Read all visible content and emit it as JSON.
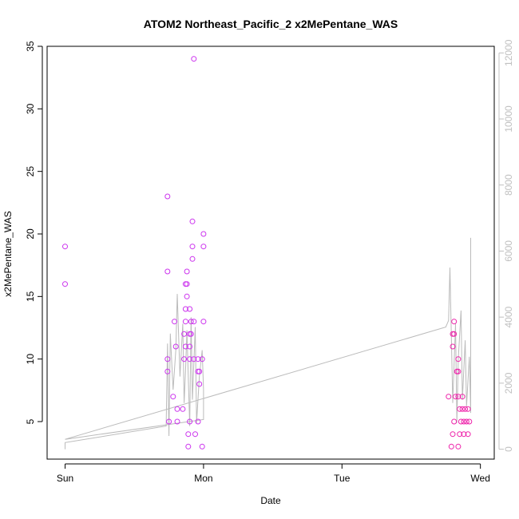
{
  "chart_data": {
    "type": "scatter",
    "title": "ATOM2 Northeast_Pacific_2 x2MePentane_WAS",
    "xlabel": "Date",
    "ylabel": "x2MePentane_WAS",
    "x_ticks": [
      {
        "value": 0,
        "label": "Sun"
      },
      {
        "value": 1,
        "label": "Mon"
      },
      {
        "value": 2,
        "label": "Tue"
      },
      {
        "value": 3,
        "label": "Wed"
      }
    ],
    "xlim": [
      -0.13,
      3.1
    ],
    "ylim": [
      2,
      35
    ],
    "y_ticks": [
      5,
      10,
      15,
      20,
      25,
      30,
      35
    ],
    "y2lim": [
      -300,
      12200
    ],
    "y2_ticks": [
      0,
      2000,
      4000,
      6000,
      8000,
      10000,
      12000
    ],
    "colors": {
      "points_early": "#cc33ee",
      "points_late": "#ee22aa",
      "line": "#bbbbbb",
      "axis": "#000000",
      "right_axis": "#c0c0c0"
    },
    "series": [
      {
        "kind": "points",
        "color_key": "points_early",
        "points": [
          [
            0.0,
            19
          ],
          [
            0.0,
            16
          ],
          [
            0.74,
            23
          ],
          [
            0.74,
            17
          ],
          [
            0.74,
            10
          ],
          [
            0.74,
            9
          ],
          [
            0.75,
            5
          ],
          [
            0.78,
            7
          ],
          [
            0.79,
            13
          ],
          [
            0.8,
            11
          ],
          [
            0.81,
            6
          ],
          [
            0.81,
            5
          ],
          [
            0.85,
            6
          ],
          [
            0.86,
            10
          ],
          [
            0.86,
            12
          ],
          [
            0.87,
            16
          ],
          [
            0.87,
            14
          ],
          [
            0.87,
            13
          ],
          [
            0.87,
            11
          ],
          [
            0.88,
            17
          ],
          [
            0.88,
            15
          ],
          [
            0.88,
            16
          ],
          [
            0.89,
            4
          ],
          [
            0.89,
            3
          ],
          [
            0.9,
            14
          ],
          [
            0.9,
            12
          ],
          [
            0.9,
            11
          ],
          [
            0.9,
            10
          ],
          [
            0.9,
            5
          ],
          [
            0.91,
            13
          ],
          [
            0.91,
            12
          ],
          [
            0.92,
            21
          ],
          [
            0.92,
            19
          ],
          [
            0.92,
            18
          ],
          [
            0.93,
            34
          ],
          [
            0.93,
            13
          ],
          [
            0.93,
            10
          ],
          [
            0.94,
            4
          ],
          [
            0.96,
            10
          ],
          [
            0.96,
            9
          ],
          [
            0.96,
            5
          ],
          [
            0.97,
            8
          ],
          [
            0.97,
            9
          ],
          [
            0.99,
            10
          ],
          [
            0.99,
            3
          ],
          [
            1.0,
            20
          ],
          [
            1.0,
            19
          ],
          [
            1.0,
            13
          ]
        ]
      },
      {
        "kind": "points",
        "color_key": "points_late",
        "points": [
          [
            2.77,
            7
          ],
          [
            2.79,
            3
          ],
          [
            2.8,
            4
          ],
          [
            2.8,
            11
          ],
          [
            2.8,
            12
          ],
          [
            2.81,
            13
          ],
          [
            2.81,
            12
          ],
          [
            2.81,
            5
          ],
          [
            2.82,
            7
          ],
          [
            2.83,
            9
          ],
          [
            2.84,
            10
          ],
          [
            2.84,
            9
          ],
          [
            2.84,
            7
          ],
          [
            2.84,
            3
          ],
          [
            2.85,
            4
          ],
          [
            2.85,
            6
          ],
          [
            2.86,
            5
          ],
          [
            2.87,
            7
          ],
          [
            2.87,
            6
          ],
          [
            2.88,
            5
          ],
          [
            2.88,
            4
          ],
          [
            2.89,
            6
          ],
          [
            2.9,
            5
          ],
          [
            2.91,
            6
          ],
          [
            2.91,
            4
          ],
          [
            2.92,
            5
          ]
        ]
      },
      {
        "kind": "line",
        "color_key": "line",
        "axis": "right",
        "points": [
          [
            0.0,
            0
          ],
          [
            0.0,
            200
          ],
          [
            0.73,
            700
          ],
          [
            0.74,
            3200
          ],
          [
            0.75,
            400
          ],
          [
            0.76,
            3500
          ],
          [
            0.78,
            1800
          ],
          [
            0.8,
            3000
          ],
          [
            0.81,
            4700
          ],
          [
            0.83,
            2200
          ],
          [
            0.85,
            3800
          ],
          [
            0.86,
            1400
          ],
          [
            0.87,
            2400
          ],
          [
            0.88,
            3600
          ],
          [
            0.9,
            700
          ],
          [
            0.91,
            4000
          ],
          [
            0.92,
            1500
          ],
          [
            0.94,
            3700
          ],
          [
            0.95,
            800
          ],
          [
            0.97,
            2200
          ],
          [
            0.99,
            3000
          ],
          [
            1.0,
            1800
          ],
          [
            1.0,
            900
          ],
          [
            0.0,
            300
          ],
          [
            2.75,
            3700
          ],
          [
            2.77,
            3900
          ],
          [
            2.78,
            5500
          ],
          [
            2.8,
            1400
          ],
          [
            2.82,
            3800
          ],
          [
            2.83,
            800
          ],
          [
            2.84,
            2700
          ],
          [
            2.86,
            4200
          ],
          [
            2.87,
            1500
          ],
          [
            2.89,
            3300
          ],
          [
            2.9,
            1300
          ],
          [
            2.92,
            2800
          ],
          [
            2.93,
            1100
          ],
          [
            2.93,
            6400
          ]
        ]
      }
    ]
  }
}
